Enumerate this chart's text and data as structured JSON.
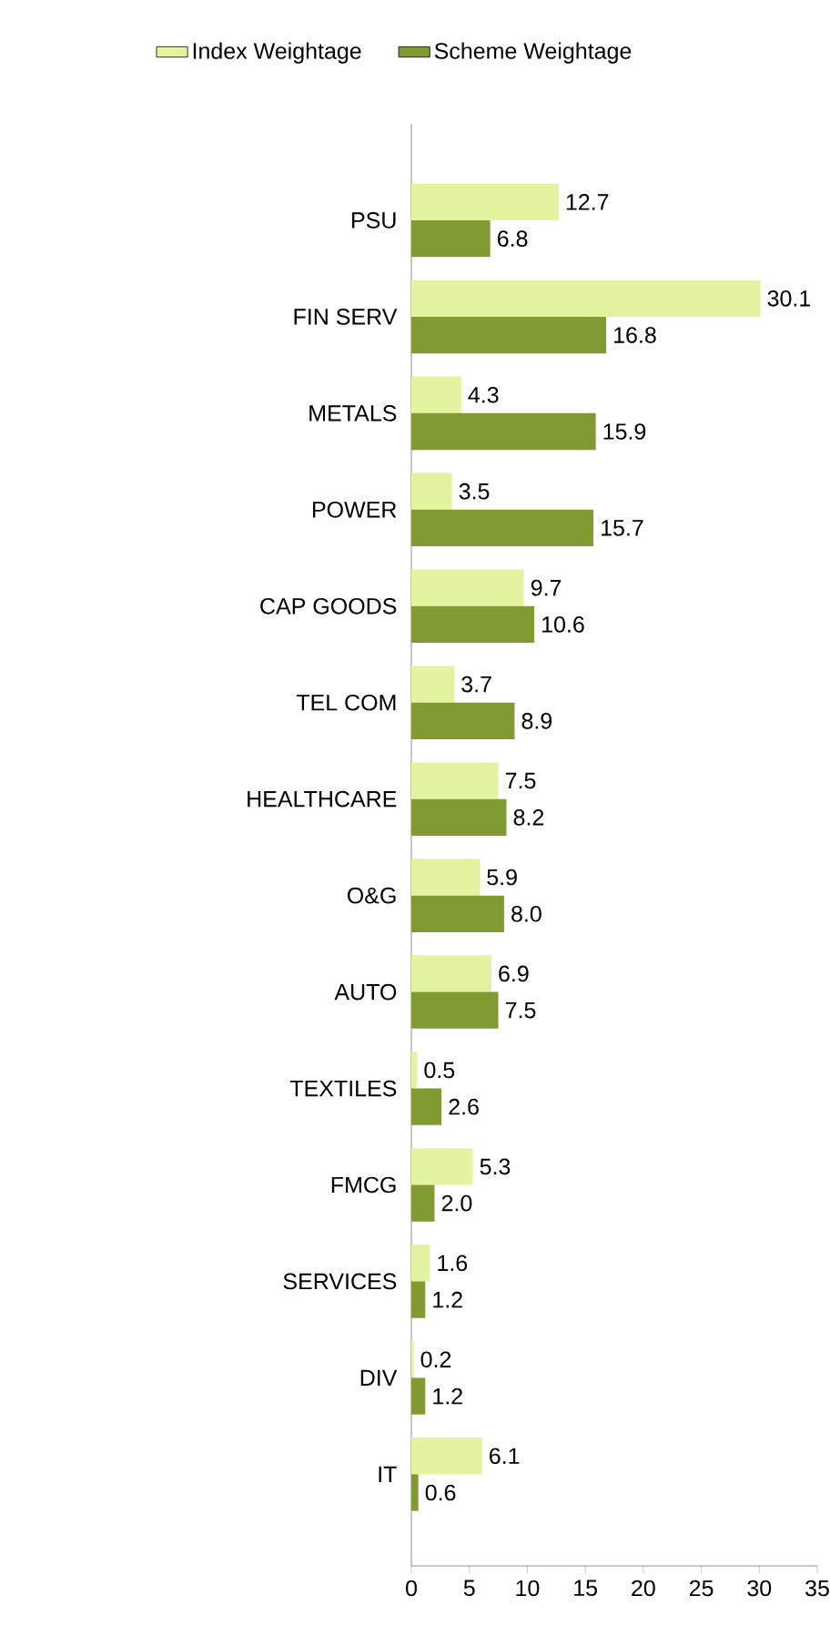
{
  "chart_data": {
    "type": "bar",
    "orientation": "horizontal",
    "categories": [
      "PSU",
      "FIN SERV",
      "METALS",
      "POWER",
      "CAP GOODS",
      "TEL COM",
      "HEALTHCARE",
      "O&G",
      "AUTO",
      "TEXTILES",
      "FMCG",
      "SERVICES",
      "DIV",
      "IT"
    ],
    "series": [
      {
        "name": "Index Weightage",
        "color": "#e4f3a0",
        "values": [
          12.7,
          30.1,
          4.3,
          3.5,
          9.7,
          3.7,
          7.5,
          5.9,
          6.9,
          0.5,
          5.3,
          1.6,
          0.2,
          6.1
        ],
        "value_labels": [
          "12.7",
          "30.1",
          "4.3",
          "3.5",
          "9.7",
          "3.7",
          "7.5",
          "5.9",
          "6.9",
          "0.5",
          "5.3",
          "1.6",
          "0.2",
          "6.1"
        ]
      },
      {
        "name": "Scheme Weightage",
        "color": "#7f9b31",
        "values": [
          6.8,
          16.8,
          15.9,
          15.7,
          10.6,
          8.9,
          8.2,
          8.0,
          7.5,
          2.6,
          2.0,
          1.2,
          1.2,
          0.6
        ],
        "value_labels": [
          "6.8",
          "16.8",
          "15.9",
          "15.7",
          "10.6",
          "8.9",
          "8.2",
          "8.0",
          "7.5",
          "2.6",
          "2.0",
          "1.2",
          "1.2",
          "0.6"
        ]
      }
    ],
    "xlim": [
      0,
      35
    ],
    "xticks": [
      0,
      5,
      10,
      15,
      20,
      25,
      30,
      35
    ],
    "legend": "top",
    "grid": false
  }
}
